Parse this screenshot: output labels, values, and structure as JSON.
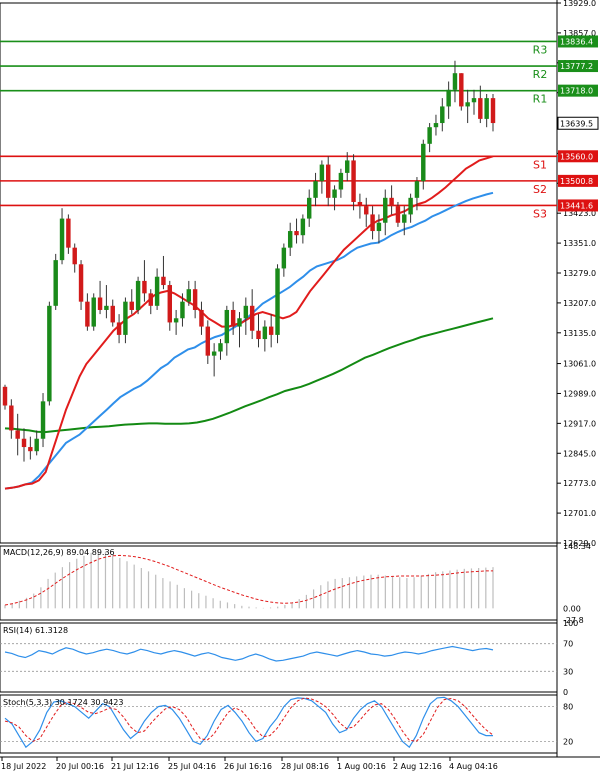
{
  "chart_data": [
    {
      "type": "candlestick",
      "name": "",
      "ylim": [
        12629.0,
        13929.0
      ],
      "y_ticks": [
        "13929.0",
        "13857.0",
        "13785.0",
        "13713.0",
        "13639.5",
        "13567.0",
        "13495.0",
        "13423.0",
        "13351.0",
        "13279.0",
        "13207.0",
        "13135.0",
        "13061.0",
        "12989.0",
        "12917.0",
        "12845.0",
        "12773.0",
        "12701.0",
        "12629.0"
      ],
      "x_labels": [
        "18 Jul 2022",
        "20 Jul 00:16",
        "21 Jul 12:16",
        "25 Jul 04:16",
        "26 Jul 16:16",
        "28 Jul 08:16",
        "1 Aug 00:16",
        "2 Aug 12:16",
        "4 Aug 04:16"
      ],
      "current_price": "13639.5",
      "levels": [
        {
          "name": "R3",
          "value": 13836.4,
          "label": "13836.4",
          "color": "#1a8f1a"
        },
        {
          "name": "R2",
          "value": 13777.2,
          "label": "13777.2",
          "color": "#1a8f1a"
        },
        {
          "name": "R1",
          "value": 13718.0,
          "label": "13718.0",
          "color": "#1a8f1a"
        },
        {
          "name": "S1",
          "value": 13560.0,
          "label": "13560.0",
          "color": "#dd1111"
        },
        {
          "name": "S2",
          "value": 13500.8,
          "label": "13500.8",
          "color": "#dd1111"
        },
        {
          "name": "S3",
          "value": 13441.6,
          "label": "13441.6",
          "color": "#dd1111"
        }
      ],
      "candles": [
        [
          13005,
          13010,
          12950,
          12960
        ],
        [
          12960,
          12975,
          12880,
          12900
        ],
        [
          12900,
          12940,
          12840,
          12880
        ],
        [
          12880,
          12905,
          12825,
          12860
        ],
        [
          12860,
          12885,
          12830,
          12850
        ],
        [
          12850,
          12900,
          12840,
          12880
        ],
        [
          12880,
          12990,
          12860,
          12970
        ],
        [
          12970,
          13210,
          12960,
          13200
        ],
        [
          13200,
          13325,
          13190,
          13310
        ],
        [
          13310,
          13435,
          13300,
          13410
        ],
        [
          13410,
          13420,
          13325,
          13340
        ],
        [
          13340,
          13350,
          13280,
          13300
        ],
        [
          13300,
          13310,
          13190,
          13210
        ],
        [
          13210,
          13230,
          13140,
          13150
        ],
        [
          13150,
          13230,
          13140,
          13220
        ],
        [
          13220,
          13260,
          13180,
          13190
        ],
        [
          13190,
          13250,
          13170,
          13200
        ],
        [
          13200,
          13215,
          13150,
          13160
        ],
        [
          13160,
          13180,
          13110,
          13130
        ],
        [
          13130,
          13220,
          13110,
          13210
        ],
        [
          13210,
          13240,
          13180,
          13190
        ],
        [
          13190,
          13270,
          13180,
          13260
        ],
        [
          13260,
          13310,
          13210,
          13230
        ],
        [
          13230,
          13240,
          13180,
          13200
        ],
        [
          13200,
          13290,
          13190,
          13270
        ],
        [
          13270,
          13320,
          13240,
          13250
        ],
        [
          13250,
          13260,
          13140,
          13160
        ],
        [
          13160,
          13190,
          13130,
          13170
        ],
        [
          13170,
          13230,
          13150,
          13210
        ],
        [
          13210,
          13260,
          13200,
          13240
        ],
        [
          13240,
          13260,
          13170,
          13190
        ],
        [
          13190,
          13210,
          13130,
          13150
        ],
        [
          13150,
          13165,
          13060,
          13080
        ],
        [
          13080,
          13110,
          13030,
          13090
        ],
        [
          13090,
          13120,
          13070,
          13110
        ],
        [
          13110,
          13200,
          13080,
          13190
        ],
        [
          13190,
          13210,
          13130,
          13150
        ],
        [
          13150,
          13185,
          13100,
          13170
        ],
        [
          13170,
          13220,
          13130,
          13200
        ],
        [
          13200,
          13240,
          13120,
          13140
        ],
        [
          13140,
          13180,
          13100,
          13120
        ],
        [
          13120,
          13165,
          13090,
          13150
        ],
        [
          13150,
          13180,
          13100,
          13130
        ],
        [
          13130,
          13300,
          13110,
          13290
        ],
        [
          13290,
          13350,
          13270,
          13340
        ],
        [
          13340,
          13400,
          13320,
          13380
        ],
        [
          13380,
          13410,
          13350,
          13370
        ],
        [
          13370,
          13420,
          13350,
          13410
        ],
        [
          13410,
          13480,
          13390,
          13460
        ],
        [
          13460,
          13520,
          13440,
          13500
        ],
        [
          13500,
          13550,
          13470,
          13540
        ],
        [
          13540,
          13560,
          13440,
          13460
        ],
        [
          13460,
          13490,
          13430,
          13480
        ],
        [
          13480,
          13530,
          13460,
          13520
        ],
        [
          13520,
          13570,
          13500,
          13550
        ],
        [
          13550,
          13565,
          13430,
          13450
        ],
        [
          13450,
          13470,
          13410,
          13440
        ],
        [
          13440,
          13460,
          13390,
          13420
        ],
        [
          13420,
          13440,
          13360,
          13380
        ],
        [
          13380,
          13420,
          13350,
          13400
        ],
        [
          13400,
          13480,
          13370,
          13460
        ],
        [
          13460,
          13490,
          13420,
          13440
        ],
        [
          13440,
          13450,
          13390,
          13400
        ],
        [
          13400,
          13440,
          13370,
          13420
        ],
        [
          13420,
          13470,
          13400,
          13460
        ],
        [
          13460,
          13510,
          13430,
          13500
        ],
        [
          13500,
          13600,
          13480,
          13590
        ],
        [
          13590,
          13640,
          13570,
          13630
        ],
        [
          13630,
          13660,
          13610,
          13640
        ],
        [
          13640,
          13700,
          13620,
          13680
        ],
        [
          13680,
          13740,
          13650,
          13720
        ],
        [
          13720,
          13790,
          13690,
          13760
        ],
        [
          13760,
          13760,
          13670,
          13680
        ],
        [
          13680,
          13720,
          13640,
          13690
        ],
        [
          13690,
          13720,
          13660,
          13700
        ],
        [
          13700,
          13730,
          13640,
          13650
        ],
        [
          13650,
          13710,
          13630,
          13700
        ],
        [
          13700,
          13710,
          13620,
          13640
        ]
      ],
      "ma_red": [
        12760,
        12762,
        12765,
        12770,
        12772,
        12780,
        12800,
        12850,
        12900,
        12950,
        12990,
        13030,
        13060,
        13080,
        13100,
        13120,
        13140,
        13155,
        13170,
        13180,
        13195,
        13210,
        13225,
        13232,
        13236,
        13230,
        13220,
        13210,
        13200,
        13185,
        13170,
        13160,
        13150,
        13150,
        13155,
        13160,
        13170,
        13180,
        13185,
        13180,
        13175,
        13170,
        13175,
        13185,
        13210,
        13235,
        13255,
        13275,
        13295,
        13315,
        13335,
        13350,
        13365,
        13380,
        13395,
        13405,
        13410,
        13418,
        13422,
        13428,
        13438,
        13445,
        13450,
        13460,
        13472,
        13485,
        13500,
        13515,
        13530,
        13540,
        13550,
        13555,
        13560
      ],
      "ma_blue": [
        12760,
        12762,
        12765,
        12770,
        12775,
        12790,
        12810,
        12830,
        12850,
        12870,
        12880,
        12890,
        12905,
        12920,
        12935,
        12950,
        12965,
        12980,
        12990,
        13000,
        13008,
        13020,
        13035,
        13050,
        13060,
        13075,
        13085,
        13095,
        13100,
        13110,
        13118,
        13125,
        13130,
        13140,
        13150,
        13160,
        13175,
        13190,
        13205,
        13215,
        13225,
        13235,
        13245,
        13258,
        13270,
        13285,
        13295,
        13300,
        13305,
        13310,
        13318,
        13330,
        13340,
        13345,
        13350,
        13352,
        13360,
        13370,
        13378,
        13385,
        13390,
        13398,
        13405,
        13415,
        13422,
        13430,
        13438,
        13445,
        13452,
        13458,
        13463,
        13468,
        13472
      ],
      "ma_green": [
        12905,
        12904,
        12902,
        12900,
        12897,
        12896,
        12898,
        12900,
        12902,
        12904,
        12906,
        12908,
        12909,
        12910,
        12912,
        12914,
        12915,
        12916,
        12917,
        12917,
        12916,
        12916,
        12916,
        12917,
        12919,
        12923,
        12928,
        12935,
        12942,
        12950,
        12958,
        12965,
        12972,
        12980,
        12987,
        12995,
        13000,
        13005,
        13012,
        13020,
        13028,
        13036,
        13045,
        13055,
        13065,
        13075,
        13082,
        13090,
        13098,
        13105,
        13112,
        13118,
        13125,
        13130,
        13135,
        13140,
        13145,
        13150,
        13155,
        13160,
        13165,
        13170
      ]
    },
    {
      "type": "bar",
      "name": "MACD(12,26,9) 89.04 89.36",
      "ylim": [
        -27.8,
        148.34
      ],
      "y_ticks": [
        "148.34",
        "0.00",
        "-27.8"
      ],
      "bars": [
        8,
        12,
        18,
        25,
        35,
        50,
        70,
        85,
        98,
        110,
        118,
        125,
        132,
        140,
        135,
        128,
        120,
        112,
        104,
        96,
        88,
        80,
        72,
        64,
        56,
        48,
        42,
        36,
        30,
        24,
        18,
        14,
        10,
        6,
        4,
        2,
        1,
        2,
        4,
        8,
        14,
        22,
        32,
        45,
        55,
        64,
        70,
        72,
        74,
        76,
        78,
        80,
        80,
        78,
        76,
        74,
        72,
        74,
        78,
        82,
        86,
        88,
        90,
        92,
        94,
        95,
        96,
        97,
        98
      ],
      "signal": [
        8,
        11,
        15,
        20,
        27,
        36,
        47,
        59,
        71,
        82,
        92,
        101,
        109,
        117,
        122,
        125,
        126,
        125,
        123,
        120,
        116,
        111,
        105,
        99,
        92,
        85,
        78,
        71,
        64,
        57,
        50,
        44,
        38,
        32,
        27,
        22,
        18,
        15,
        13,
        12,
        13,
        15,
        19,
        25,
        32,
        39,
        46,
        52,
        58,
        63,
        67,
        70,
        73,
        75,
        76,
        77,
        77,
        77,
        77,
        78,
        79,
        80,
        82,
        84,
        86,
        87,
        88,
        89,
        89
      ]
    },
    {
      "type": "line",
      "name": "RSI(14) 61.3128",
      "ylim": [
        0,
        100
      ],
      "y_ticks": [
        "100",
        "70",
        "30",
        "0"
      ],
      "values": [
        58,
        56,
        52,
        50,
        54,
        60,
        58,
        55,
        60,
        64,
        62,
        58,
        55,
        57,
        60,
        62,
        60,
        57,
        55,
        58,
        62,
        60,
        57,
        55,
        58,
        60,
        58,
        55,
        52,
        55,
        57,
        54,
        50,
        48,
        46,
        48,
        52,
        55,
        52,
        48,
        45,
        46,
        48,
        50,
        52,
        56,
        58,
        56,
        54,
        52,
        55,
        58,
        60,
        58,
        55,
        54,
        52,
        53,
        56,
        58,
        57,
        55,
        57,
        60,
        62,
        64,
        66,
        64,
        62,
        60,
        62,
        63,
        61
      ]
    },
    {
      "type": "line",
      "name": "Stoch(5,3,3) 30.1724 30.9423",
      "ylim": [
        0,
        100
      ],
      "y_ticks": [
        "80",
        "20"
      ],
      "k": [
        60,
        50,
        30,
        10,
        20,
        40,
        70,
        88,
        90,
        85,
        80,
        70,
        60,
        72,
        85,
        80,
        60,
        40,
        25,
        35,
        55,
        70,
        80,
        82,
        75,
        60,
        40,
        20,
        15,
        30,
        55,
        75,
        82,
        70,
        55,
        35,
        20,
        25,
        45,
        60,
        80,
        92,
        95,
        94,
        90,
        80,
        70,
        50,
        35,
        40,
        60,
        75,
        85,
        90,
        80,
        60,
        40,
        20,
        10,
        30,
        60,
        85,
        95,
        96,
        90,
        80,
        65,
        50,
        35,
        30,
        30
      ],
      "d": [
        55,
        52,
        45,
        30,
        20,
        25,
        45,
        65,
        82,
        88,
        85,
        78,
        70,
        68,
        72,
        78,
        75,
        62,
        45,
        35,
        38,
        52,
        65,
        76,
        80,
        75,
        62,
        42,
        25,
        22,
        33,
        52,
        70,
        78,
        72,
        58,
        40,
        28,
        30,
        42,
        60,
        78,
        90,
        95,
        93,
        88,
        80,
        67,
        52,
        42,
        45,
        58,
        72,
        83,
        85,
        75,
        58,
        38,
        22,
        20,
        32,
        55,
        78,
        92,
        94,
        90,
        80,
        66,
        52,
        40,
        31
      ]
    }
  ]
}
